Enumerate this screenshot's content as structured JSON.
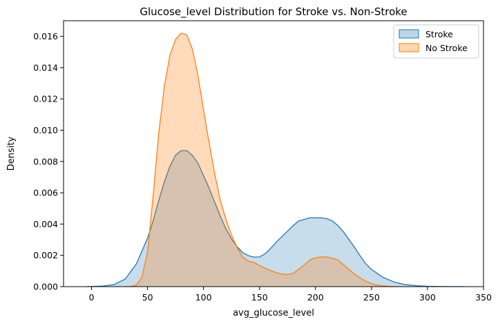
{
  "chart_data": {
    "type": "area",
    "title": "Glucose_level Distribution for Stroke vs. Non-Stroke",
    "xlabel": "avg_glucose_level",
    "ylabel": "Density",
    "xlim": [
      -25,
      350
    ],
    "ylim": [
      0,
      0.017
    ],
    "x_ticks": [
      0,
      50,
      100,
      150,
      200,
      250,
      300,
      350
    ],
    "x_tick_labels": [
      "0",
      "50",
      "100",
      "150",
      "200",
      "250",
      "300",
      "350"
    ],
    "y_ticks": [
      0,
      0.002,
      0.004,
      0.006,
      0.008,
      0.01,
      0.012,
      0.014,
      0.016
    ],
    "y_tick_labels": [
      "0.000",
      "0.002",
      "0.004",
      "0.006",
      "0.008",
      "0.010",
      "0.012",
      "0.014",
      "0.016"
    ],
    "grid": false,
    "legend": {
      "placement": "top-right",
      "entries": [
        "Stroke",
        "No Stroke"
      ]
    },
    "series": [
      {
        "name": "Stroke",
        "color": "#1f77b4",
        "fill": "#1f77b4",
        "fill_opacity": 0.25,
        "x": [
          -5,
          0,
          10,
          20,
          30,
          40,
          50,
          55,
          60,
          65,
          70,
          75,
          80,
          85,
          90,
          95,
          100,
          105,
          110,
          115,
          120,
          125,
          130,
          135,
          140,
          145,
          150,
          155,
          160,
          165,
          170,
          175,
          180,
          185,
          190,
          195,
          200,
          205,
          210,
          215,
          220,
          225,
          230,
          235,
          240,
          245,
          250,
          260,
          270,
          280,
          290,
          300,
          310,
          320,
          333
        ],
        "y": [
          0,
          1e-05,
          4e-05,
          0.00013,
          0.00048,
          0.00145,
          0.0031,
          0.0042,
          0.0055,
          0.0067,
          0.0077,
          0.0084,
          0.0087,
          0.0087,
          0.0084,
          0.0079,
          0.0071,
          0.0063,
          0.0054,
          0.0045,
          0.0037,
          0.00305,
          0.00255,
          0.00218,
          0.00198,
          0.00189,
          0.0019,
          0.0021,
          0.00245,
          0.00285,
          0.0032,
          0.00355,
          0.0039,
          0.0042,
          0.0043,
          0.0044,
          0.0044,
          0.0044,
          0.00435,
          0.0042,
          0.0039,
          0.0035,
          0.003,
          0.0025,
          0.00195,
          0.00145,
          0.0011,
          0.0006,
          0.0003,
          0.00013,
          6e-05,
          2e-05,
          1e-05,
          0,
          0
        ]
      },
      {
        "name": "No Stroke",
        "color": "#ff7f0e",
        "fill": "#ff7f0e",
        "fill_opacity": 0.28,
        "x": [
          30,
          35,
          40,
          45,
          50,
          55,
          60,
          65,
          70,
          75,
          80,
          85,
          90,
          95,
          100,
          105,
          110,
          115,
          120,
          125,
          130,
          135,
          140,
          145,
          150,
          155,
          160,
          165,
          170,
          175,
          180,
          185,
          190,
          195,
          200,
          205,
          210,
          215,
          220,
          225,
          230,
          235,
          240,
          245,
          250,
          255,
          260,
          265,
          270,
          275
        ],
        "y": [
          0,
          1e-05,
          0.0001,
          0.0006,
          0.0022,
          0.0058,
          0.0098,
          0.0128,
          0.0148,
          0.0158,
          0.0162,
          0.0161,
          0.0152,
          0.0135,
          0.0113,
          0.0092,
          0.0072,
          0.0055,
          0.0043,
          0.0033,
          0.0025,
          0.0019,
          0.00163,
          0.00155,
          0.00135,
          0.00118,
          0.00102,
          0.0009,
          0.0008,
          0.00077,
          0.00085,
          0.0011,
          0.0014,
          0.0017,
          0.00185,
          0.0019,
          0.0019,
          0.00182,
          0.0017,
          0.0014,
          0.0011,
          0.0008,
          0.00055,
          0.00035,
          0.0002,
          0.0001,
          5e-05,
          2e-05,
          1e-05,
          0
        ]
      }
    ]
  }
}
